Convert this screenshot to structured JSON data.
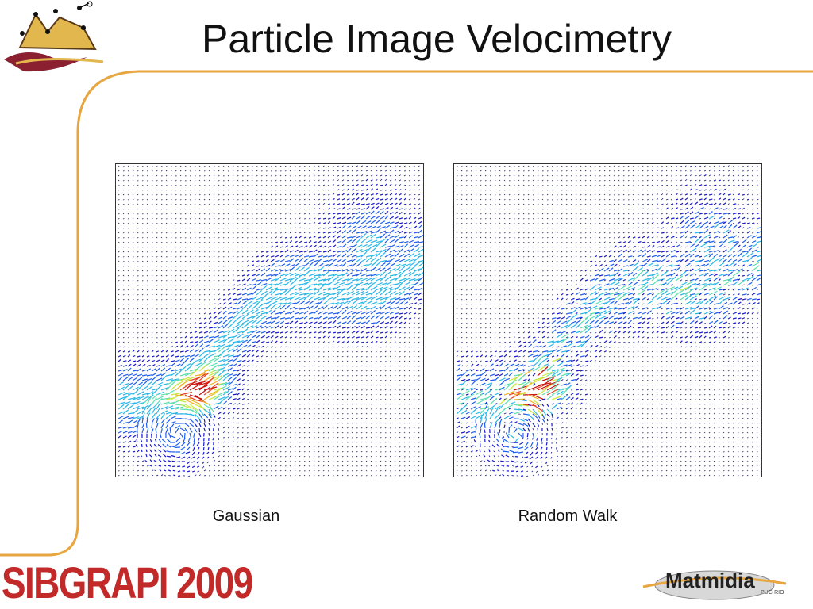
{
  "slide": {
    "title": "Particle Image Velocimetry",
    "footer_logo_text": "SIBGRAPI 2009",
    "partner_logo_text": "Matmidia",
    "partner_logo_subtext": "PUC-RIO"
  },
  "figures": [
    {
      "caption": "Gaussian",
      "method": "gaussian"
    },
    {
      "caption": "Random Walk",
      "method": "random-walk"
    }
  ],
  "colors": {
    "frame_line": "#e8a640",
    "title_text": "#111111",
    "footer_logo": "#c22a2a",
    "arrow_low": "#1a1acc",
    "arrow_mid": "#2bb8e8",
    "arrow_high": "#e84020",
    "arrow_peak": "#cc1010"
  },
  "icons": {
    "corner": "mountain-drawing-icon",
    "partner": "matmidia-logo"
  }
}
